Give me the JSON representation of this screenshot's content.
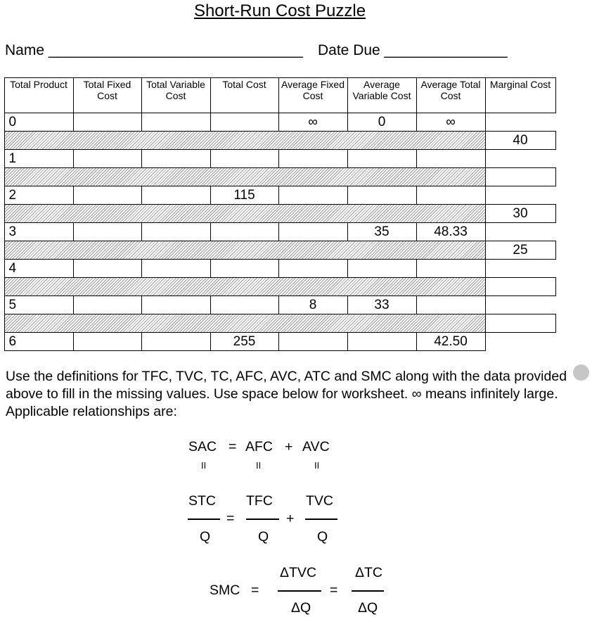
{
  "title": "Short-Run Cost Puzzle",
  "name_label": "Name _______________________________",
  "date_label": "Date Due _______________",
  "table": {
    "headers": [
      "Total Product",
      "Total Fixed Cost",
      "Total Variable Cost",
      "Total Cost",
      "Average Fixed Cost",
      "Average Variable Cost",
      "Average Total Cost",
      "Marginal Cost"
    ],
    "rows": [
      [
        "0",
        "",
        "",
        "",
        "∞",
        "0",
        "∞"
      ],
      [
        "1",
        "",
        "",
        "",
        "",
        "",
        ""
      ],
      [
        "2",
        "",
        "",
        "115",
        "",
        "",
        ""
      ],
      [
        "3",
        "",
        "",
        "",
        "",
        "35",
        "48.33"
      ],
      [
        "4",
        "",
        "",
        "",
        "",
        "",
        ""
      ],
      [
        "5",
        "",
        "",
        "",
        "8",
        "33",
        ""
      ],
      [
        "6",
        "",
        "",
        "255",
        "",
        "",
        "42.50"
      ]
    ],
    "marginal_cost": [
      "40",
      "",
      "30",
      "25",
      "",
      ""
    ]
  },
  "instructions": "Use the definitions for TFC, TVC, TC, AFC, AVC, ATC and SMC along with the data provided above to fill in the missing values.  Use space below for worksheet. ∞ means infinitely large.  Applicable relationships are:",
  "equations": {
    "line1": {
      "sac": "SAC",
      "eq": "=",
      "afc": "AFC",
      "plus": "+",
      "avc": "AVC"
    },
    "equals_sign": "II",
    "line2": {
      "stc": "STC",
      "tfc": "TFC",
      "tvc": "TVC",
      "q": "Q",
      "eq": "=",
      "plus": "+"
    },
    "line3": {
      "smc": "SMC",
      "eq": "=",
      "dtvc": "ΔTVC",
      "dtc": "ΔTC",
      "dq": "ΔQ"
    }
  }
}
